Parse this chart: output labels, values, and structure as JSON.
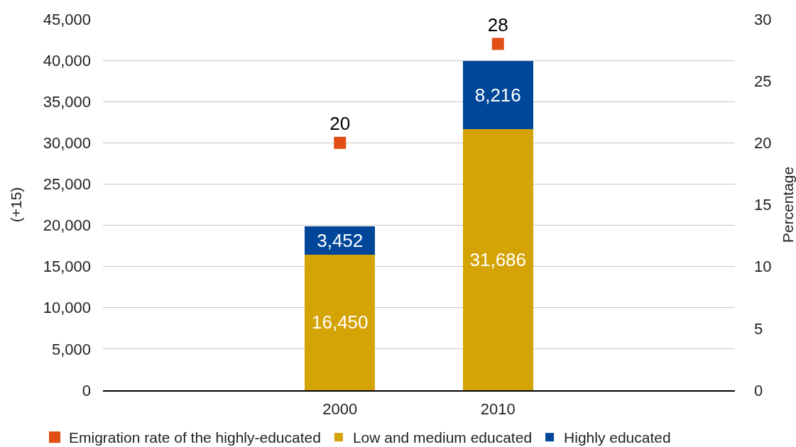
{
  "chart_data": {
    "type": "bar",
    "stacked": true,
    "categories": [
      null,
      "2000",
      "2010",
      null
    ],
    "ylabel": "(+15)",
    "y2label": "Percentage",
    "ylim": [
      0,
      45000
    ],
    "yticks": [
      0,
      {
        "value": 5000,
        "label": "5,000"
      },
      {
        "value": 10000,
        "label": "10,000"
      },
      {
        "value": 15000,
        "label": "15,000"
      },
      {
        "value": 20000,
        "label": "20,000"
      },
      {
        "value": 25000,
        "label": "25,000"
      },
      {
        "value": 30000,
        "label": "30,000"
      },
      {
        "value": 35000,
        "label": "35,000"
      },
      {
        "value": 40000,
        "label": "40,000"
      },
      {
        "value": 45000,
        "label": "45,000"
      }
    ],
    "y2lim": [
      0,
      30
    ],
    "y2ticks": [
      0,
      5,
      10,
      15,
      20,
      25,
      30
    ],
    "grid": "y",
    "legend": "bottom",
    "series": [
      {
        "name": "Emigration rate of the highly-educated",
        "type": "scatter",
        "axis": "y2",
        "marker": "square",
        "color": "#e04e14",
        "values": [
          null,
          20,
          28,
          null
        ],
        "value_labels": [
          null,
          "20",
          "28",
          null
        ]
      },
      {
        "name": "Low and medium educated",
        "color": "#d4a306",
        "values": [
          null,
          16450,
          31686,
          null
        ],
        "value_labels": [
          null,
          "16,450",
          "31,686",
          null
        ]
      },
      {
        "name": "Highly educated",
        "color": "#00479a",
        "values": [
          null,
          3452,
          8216,
          null
        ],
        "value_labels": [
          null,
          "3,452",
          "8,216",
          null
        ]
      }
    ]
  }
}
